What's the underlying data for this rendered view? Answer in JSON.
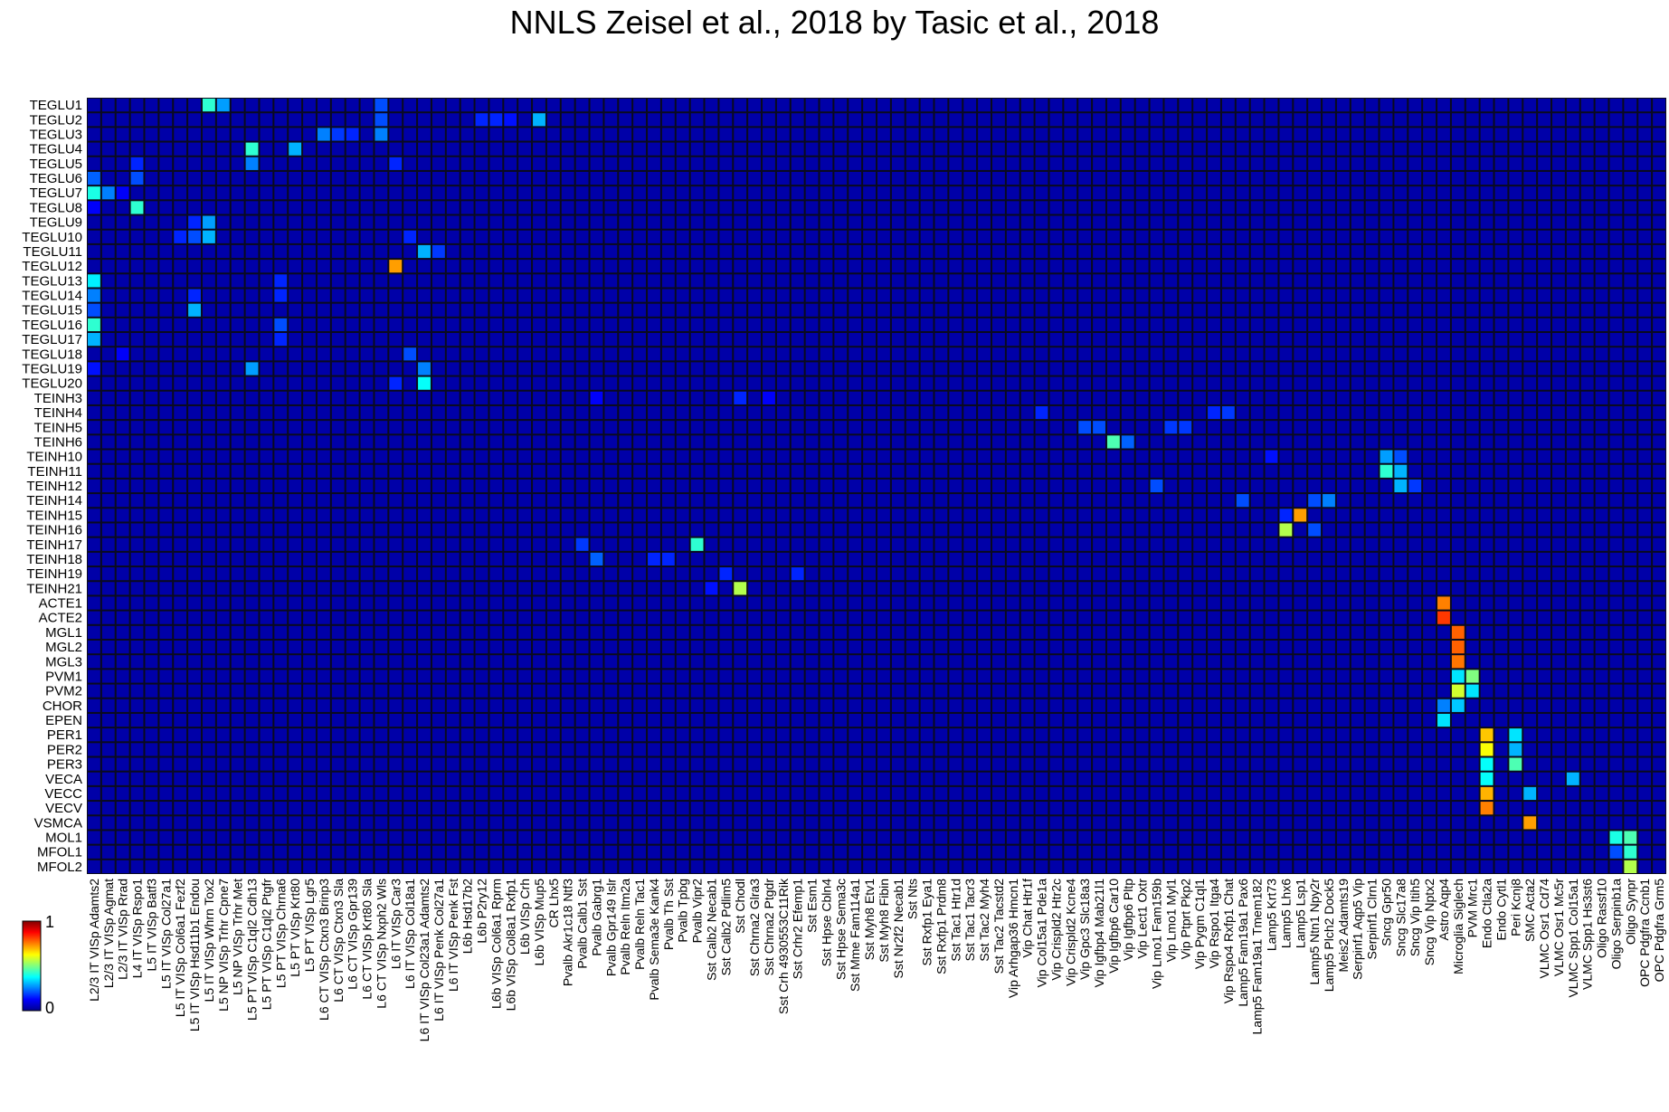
{
  "chart_data": {
    "type": "heatmap",
    "title": "NNLS Zeisel et al., 2018 by Tasic et al., 2018",
    "xlabel": "",
    "ylabel": "",
    "rows": [
      "TEGLU1",
      "TEGLU2",
      "TEGLU3",
      "TEGLU4",
      "TEGLU5",
      "TEGLU6",
      "TEGLU7",
      "TEGLU8",
      "TEGLU9",
      "TEGLU10",
      "TEGLU11",
      "TEGLU12",
      "TEGLU13",
      "TEGLU14",
      "TEGLU15",
      "TEGLU16",
      "TEGLU17",
      "TEGLU18",
      "TEGLU19",
      "TEGLU20",
      "TEINH3",
      "TEINH4",
      "TEINH5",
      "TEINH6",
      "TEINH10",
      "TEINH11",
      "TEINH12",
      "TEINH14",
      "TEINH15",
      "TEINH16",
      "TEINH17",
      "TEINH18",
      "TEINH19",
      "TEINH21",
      "ACTE1",
      "ACTE2",
      "MGL1",
      "MGL2",
      "MGL3",
      "PVM1",
      "PVM2",
      "CHOR",
      "EPEN",
      "PER1",
      "PER2",
      "PER3",
      "VECA",
      "VECC",
      "VECV",
      "VSMCA",
      "MOL1",
      "MFOL1",
      "MFOL2"
    ],
    "columns": [
      "L2/3 IT VISp Adamts2",
      "L2/3 IT VISp Agmat",
      "L2/3 IT VISp Rrad",
      "L4 IT VISp Rspo1",
      "L5 IT VISp Batf3",
      "L5 IT VISp Col27a1",
      "L5 IT VISp Col6a1 Fezf2",
      "L5 IT VISp Hsd11b1 Endou",
      "L5 IT VISp Whrn Tox2",
      "L5 NP VISp Trhr Cpne7",
      "L5 NP VISp Trhr Met",
      "L5 PT VISp C1ql2 Cdh13",
      "L5 PT VISp C1ql2 Ptgfr",
      "L5 PT VISp Chrna6",
      "L5 PT VISp Krt80",
      "L5 PT VISp Lgr5",
      "L6 CT VISp Ctxn3 Brinp3",
      "L6 CT VISp Ctxn3 Sla",
      "L6 CT VISp Gpr139",
      "L6 CT VISp Krt80 Sla",
      "L6 CT VISp Nxph2 Wls",
      "L6 IT VISp Car3",
      "L6 IT VISp Col18a1",
      "L6 IT VISp Col23a1 Adamts2",
      "L6 IT VISp Penk Col27a1",
      "L6 IT VISp Penk Fst",
      "L6b Hsd17b2",
      "L6b P2ry12",
      "L6b VISp Col6a1 Rprm",
      "L6b VISp Col8a1 Rxfp1",
      "L6b VISp Crh",
      "L6b VISp Mup5",
      "CR Lhx5",
      "Pvalb Akr1c18 Ntf3",
      "Pvalb Calb1 Sst",
      "Pvalb Gabrg1",
      "Pvalb Gpr149 Islr",
      "Pvalb Reln Itm2a",
      "Pvalb Reln Tac1",
      "Pvalb Sema3e Kank4",
      "Pvalb Th Sst",
      "Pvalb Tpbg",
      "Pvalb Vipr2",
      "Sst Calb2 Necab1",
      "Sst Calb2 Pdlim5",
      "Sst Chodl",
      "Sst Chrna2 Glra3",
      "Sst Chrna2 Ptgdr",
      "Sst Crh 4930553C11Rik",
      "Sst Crhr2 Efemp1",
      "Sst Esm1",
      "Sst Hpse Cbln4",
      "Sst Hpse Sema3c",
      "Sst Mme Fam114a1",
      "Sst Myh8 Etv1",
      "Sst Myh8 Fibin",
      "Sst Nr2f2 Necab1",
      "Sst Nts",
      "Sst Rxfp1 Eya1",
      "Sst Rxfp1 Prdm8",
      "Sst Tac1 Htr1d",
      "Sst Tac1 Tacr3",
      "Sst Tac2 Myh4",
      "Sst Tac2 Tacstd2",
      "Vip Arhgap36 Hmcn1",
      "Vip Chat Htr1f",
      "Vip Col15a1 Pde1a",
      "Vip Crispld2 Htr2c",
      "Vip Crispld2 Kcne4",
      "Vip Gpc3 Slc18a3",
      "Vip Igfbp4 Mab21l1",
      "Vip Igfbp6 Car10",
      "Vip Igfbp6 Pltp",
      "Vip Lect1 Oxtr",
      "Vip Lmo1 Fam159b",
      "Vip Lmo1 Myl1",
      "Vip Ptprt Pkp2",
      "Vip Pygm C1ql1",
      "Vip Rspo1 Itga4",
      "Vip Rspo4 Rxfp1 Chat",
      "Lamp5 Fam19a1 Pax6",
      "Lamp5 Fam19a1 Tmem182",
      "Lamp5 Krt73",
      "Lamp5 Lhx6",
      "Lamp5 Lsp1",
      "Lamp5 Ntn1 Npy2r",
      "Lamp5 Plch2 Dock5",
      "Meis2 Adamts19",
      "Serpinf1 Aqp5 Vip",
      "Serpinf1 Clrn1",
      "Sncg Gpr50",
      "Sncg Slc17a8",
      "Sncg Vip Itih5",
      "Sncg Vip Nptx2",
      "Astro Aqp4",
      "Microglia Siglech",
      "PVM Mrc1",
      "Endo Ctla2a",
      "Endo Cytl1",
      "Peri Kcnj8",
      "SMC Acta2",
      "VLMC Osr1 Cd74",
      "VLMC Osr1 Mc5r",
      "VLMC Spp1 Col15a1",
      "VLMC Spp1 Hs3st6",
      "Oligo Rassf10",
      "Oligo Serpinb1a",
      "Oligo Synpr",
      "OPC Pdgfra Ccnb1",
      "OPC Pdgfra Grm5"
    ],
    "value_range": [
      0,
      1
    ],
    "colormap": "jet",
    "background_value": 0.04,
    "colorbar": {
      "min_label": "0",
      "max_label": "1",
      "placement": "bottom-left"
    },
    "cells": [
      [
        "TEGLU1",
        "L5 IT VISp Whrn Tox2",
        0.42
      ],
      [
        "TEGLU1",
        "L5 NP VISp Trhr Cpne7",
        0.28
      ],
      [
        "TEGLU1",
        "L6 CT VISp Nxph2 Wls",
        0.2
      ],
      [
        "TEGLU2",
        "L6 CT VISp Nxph2 Wls",
        0.2
      ],
      [
        "TEGLU2",
        "L6b P2ry12",
        0.16
      ],
      [
        "TEGLU2",
        "L6b VISp Col6a1 Rprm",
        0.16
      ],
      [
        "TEGLU2",
        "L6b VISp Col8a1 Rxfp1",
        0.14
      ],
      [
        "TEGLU2",
        "L6b VISp Mup5",
        0.3
      ],
      [
        "TEGLU3",
        "L6 CT VISp Ctxn3 Brinp3",
        0.25
      ],
      [
        "TEGLU3",
        "L6 CT VISp Ctxn3 Sla",
        0.18
      ],
      [
        "TEGLU3",
        "L6 CT VISp Gpr139",
        0.16
      ],
      [
        "TEGLU3",
        "L6 CT VISp Nxph2 Wls",
        0.25
      ],
      [
        "TEGLU4",
        "L5 PT VISp C1ql2 Cdh13",
        0.42
      ],
      [
        "TEGLU4",
        "L5 PT VISp Krt80",
        0.3
      ],
      [
        "TEGLU5",
        "L5 PT VISp C1ql2 Cdh13",
        0.25
      ],
      [
        "TEGLU5",
        "L4 IT VISp Rspo1",
        0.16
      ],
      [
        "TEGLU5",
        "L6 IT VISp Car3",
        0.16
      ],
      [
        "TEGLU6",
        "L2/3 IT VISp Adamts2",
        0.22
      ],
      [
        "TEGLU6",
        "L4 IT VISp Rspo1",
        0.2
      ],
      [
        "TEGLU7",
        "L2/3 IT VISp Adamts2",
        0.4
      ],
      [
        "TEGLU7",
        "L2/3 IT VISp Agmat",
        0.25
      ],
      [
        "TEGLU7",
        "L2/3 IT VISp Rrad",
        0.12
      ],
      [
        "TEGLU8",
        "L4 IT VISp Rspo1",
        0.42
      ],
      [
        "TEGLU8",
        "L2/3 IT VISp Adamts2",
        0.12
      ],
      [
        "TEGLU9",
        "L5 IT VISp Hsd11b1 Endou",
        0.16
      ],
      [
        "TEGLU9",
        "L5 IT VISp Whrn Tox2",
        0.28
      ],
      [
        "TEGLU10",
        "L5 IT VISp Col6a1 Fezf2",
        0.16
      ],
      [
        "TEGLU10",
        "L5 IT VISp Hsd11b1 Endou",
        0.2
      ],
      [
        "TEGLU10",
        "L5 IT VISp Whrn Tox2",
        0.3
      ],
      [
        "TEGLU10",
        "L6 IT VISp Col18a1",
        0.16
      ],
      [
        "TEGLU11",
        "L6 IT VISp Col23a1 Adamts2",
        0.3
      ],
      [
        "TEGLU11",
        "L6 IT VISp Penk Col27a1",
        0.18
      ],
      [
        "TEGLU12",
        "L6 IT VISp Car3",
        0.72
      ],
      [
        "TEGLU13",
        "L2/3 IT VISp Adamts2",
        0.36
      ],
      [
        "TEGLU13",
        "L5 PT VISp Chrna6",
        0.16
      ],
      [
        "TEGLU14",
        "L2/3 IT VISp Adamts2",
        0.25
      ],
      [
        "TEGLU14",
        "L5 IT VISp Hsd11b1 Endou",
        0.16
      ],
      [
        "TEGLU14",
        "L5 PT VISp Chrna6",
        0.16
      ],
      [
        "TEGLU15",
        "L5 IT VISp Hsd11b1 Endou",
        0.3
      ],
      [
        "TEGLU15",
        "L2/3 IT VISp Adamts2",
        0.2
      ],
      [
        "TEGLU16",
        "L2/3 IT VISp Adamts2",
        0.42
      ],
      [
        "TEGLU16",
        "L5 PT VISp Chrna6",
        0.2
      ],
      [
        "TEGLU17",
        "L2/3 IT VISp Adamts2",
        0.3
      ],
      [
        "TEGLU17",
        "L5 PT VISp Chrna6",
        0.16
      ],
      [
        "TEGLU18",
        "L6 IT VISp Col18a1",
        0.2
      ],
      [
        "TEGLU18",
        "L2/3 IT VISp Rrad",
        0.12
      ],
      [
        "TEGLU19",
        "L5 PT VISp C1ql2 Cdh13",
        0.28
      ],
      [
        "TEGLU19",
        "L6 IT VISp Col23a1 Adamts2",
        0.25
      ],
      [
        "TEGLU19",
        "L2/3 IT VISp Adamts2",
        0.14
      ],
      [
        "TEGLU20",
        "L6 IT VISp Col23a1 Adamts2",
        0.38
      ],
      [
        "TEGLU20",
        "L6 IT VISp Car3",
        0.16
      ],
      [
        "TEINH3",
        "Sst Chodl",
        0.16
      ],
      [
        "TEINH3",
        "Pvalb Gabrg1",
        0.12
      ],
      [
        "TEINH3",
        "Sst Chrna2 Ptgdr",
        0.12
      ],
      [
        "TEINH4",
        "Vip Col15a1 Pde1a",
        0.16
      ],
      [
        "TEINH4",
        "Vip Rspo1 Itga4",
        0.16
      ],
      [
        "TEINH4",
        "Vip Rspo4 Rxfp1 Chat",
        0.18
      ],
      [
        "TEINH5",
        "Vip Gpc3 Slc18a3",
        0.2
      ],
      [
        "TEINH5",
        "Vip Igfbp4 Mab21l1",
        0.2
      ],
      [
        "TEINH5",
        "Vip Lmo1 Myl1",
        0.18
      ],
      [
        "TEINH5",
        "Vip Ptprt Pkp2",
        0.18
      ],
      [
        "TEINH6",
        "Vip Igfbp6 Car10",
        0.45
      ],
      [
        "TEINH6",
        "Vip Igfbp6 Pltp",
        0.22
      ],
      [
        "TEINH10",
        "Sncg Gpr50",
        0.28
      ],
      [
        "TEINH10",
        "Sncg Slc17a8",
        0.2
      ],
      [
        "TEINH10",
        "Lamp5 Krt73",
        0.14
      ],
      [
        "TEINH11",
        "Sncg Gpr50",
        0.42
      ],
      [
        "TEINH11",
        "Sncg Slc17a8",
        0.3
      ],
      [
        "TEINH12",
        "Sncg Slc17a8",
        0.3
      ],
      [
        "TEINH12",
        "Sncg Vip Itih5",
        0.18
      ],
      [
        "TEINH12",
        "Vip Lmo1 Fam159b",
        0.2
      ],
      [
        "TEINH14",
        "Lamp5 Plch2 Dock5",
        0.25
      ],
      [
        "TEINH14",
        "Lamp5 Ntn1 Npy2r",
        0.2
      ],
      [
        "TEINH14",
        "Lamp5 Fam19a1 Pax6",
        0.2
      ],
      [
        "TEINH15",
        "Lamp5 Lsp1",
        0.72
      ],
      [
        "TEINH15",
        "Lamp5 Lhx6",
        0.16
      ],
      [
        "TEINH16",
        "Lamp5 Lhx6",
        0.55
      ],
      [
        "TEINH16",
        "Lamp5 Ntn1 Npy2r",
        0.2
      ],
      [
        "TEINH17",
        "Pvalb Vipr2",
        0.42
      ],
      [
        "TEINH17",
        "Pvalb Calb1 Sst",
        0.18
      ],
      [
        "TEINH18",
        "Pvalb Gabrg1",
        0.22
      ],
      [
        "TEINH18",
        "Pvalb Sema3e Kank4",
        0.16
      ],
      [
        "TEINH18",
        "Pvalb Th Sst",
        0.16
      ],
      [
        "TEINH19",
        "Sst Calb2 Pdlim5",
        0.16
      ],
      [
        "TEINH19",
        "Sst Crhr2 Efemp1",
        0.16
      ],
      [
        "TEINH21",
        "Sst Chodl",
        0.55
      ],
      [
        "TEINH21",
        "Sst Calb2 Necab1",
        0.14
      ],
      [
        "ACTE1",
        "Astro Aqp4",
        0.75
      ],
      [
        "ACTE2",
        "Astro Aqp4",
        0.82
      ],
      [
        "MGL1",
        "Microglia Siglech",
        0.78
      ],
      [
        "MGL2",
        "Microglia Siglech",
        0.78
      ],
      [
        "MGL3",
        "Microglia Siglech",
        0.76
      ],
      [
        "PVM1",
        "Microglia Siglech",
        0.35
      ],
      [
        "PVM1",
        "PVM Mrc1",
        0.5
      ],
      [
        "PVM2",
        "Microglia Siglech",
        0.58
      ],
      [
        "PVM2",
        "PVM Mrc1",
        0.35
      ],
      [
        "CHOR",
        "Astro Aqp4",
        0.25
      ],
      [
        "CHOR",
        "Microglia Siglech",
        0.32
      ],
      [
        "EPEN",
        "Astro Aqp4",
        0.35
      ],
      [
        "PER1",
        "Endo Ctla2a",
        0.68
      ],
      [
        "PER1",
        "Peri Kcnj8",
        0.35
      ],
      [
        "PER2",
        "Endo Ctla2a",
        0.62
      ],
      [
        "PER2",
        "Peri Kcnj8",
        0.3
      ],
      [
        "PER3",
        "Endo Ctla2a",
        0.38
      ],
      [
        "PER3",
        "Peri Kcnj8",
        0.45
      ],
      [
        "VECA",
        "Endo Ctla2a",
        0.38
      ],
      [
        "VECA",
        "VLMC Spp1 Col15a1",
        0.3
      ],
      [
        "VECC",
        "Endo Ctla2a",
        0.7
      ],
      [
        "VECC",
        "SMC Acta2",
        0.3
      ],
      [
        "VECV",
        "Endo Ctla2a",
        0.75
      ],
      [
        "VSMCA",
        "SMC Acta2",
        0.72
      ],
      [
        "MOL1",
        "Oligo Serpinb1a",
        0.4
      ],
      [
        "MOL1",
        "Oligo Synpr",
        0.45
      ],
      [
        "MFOL1",
        "Oligo Serpinb1a",
        0.2
      ],
      [
        "MFOL1",
        "Oligo Synpr",
        0.42
      ],
      [
        "MFOL2",
        "Oligo Synpr",
        0.55
      ]
    ]
  }
}
